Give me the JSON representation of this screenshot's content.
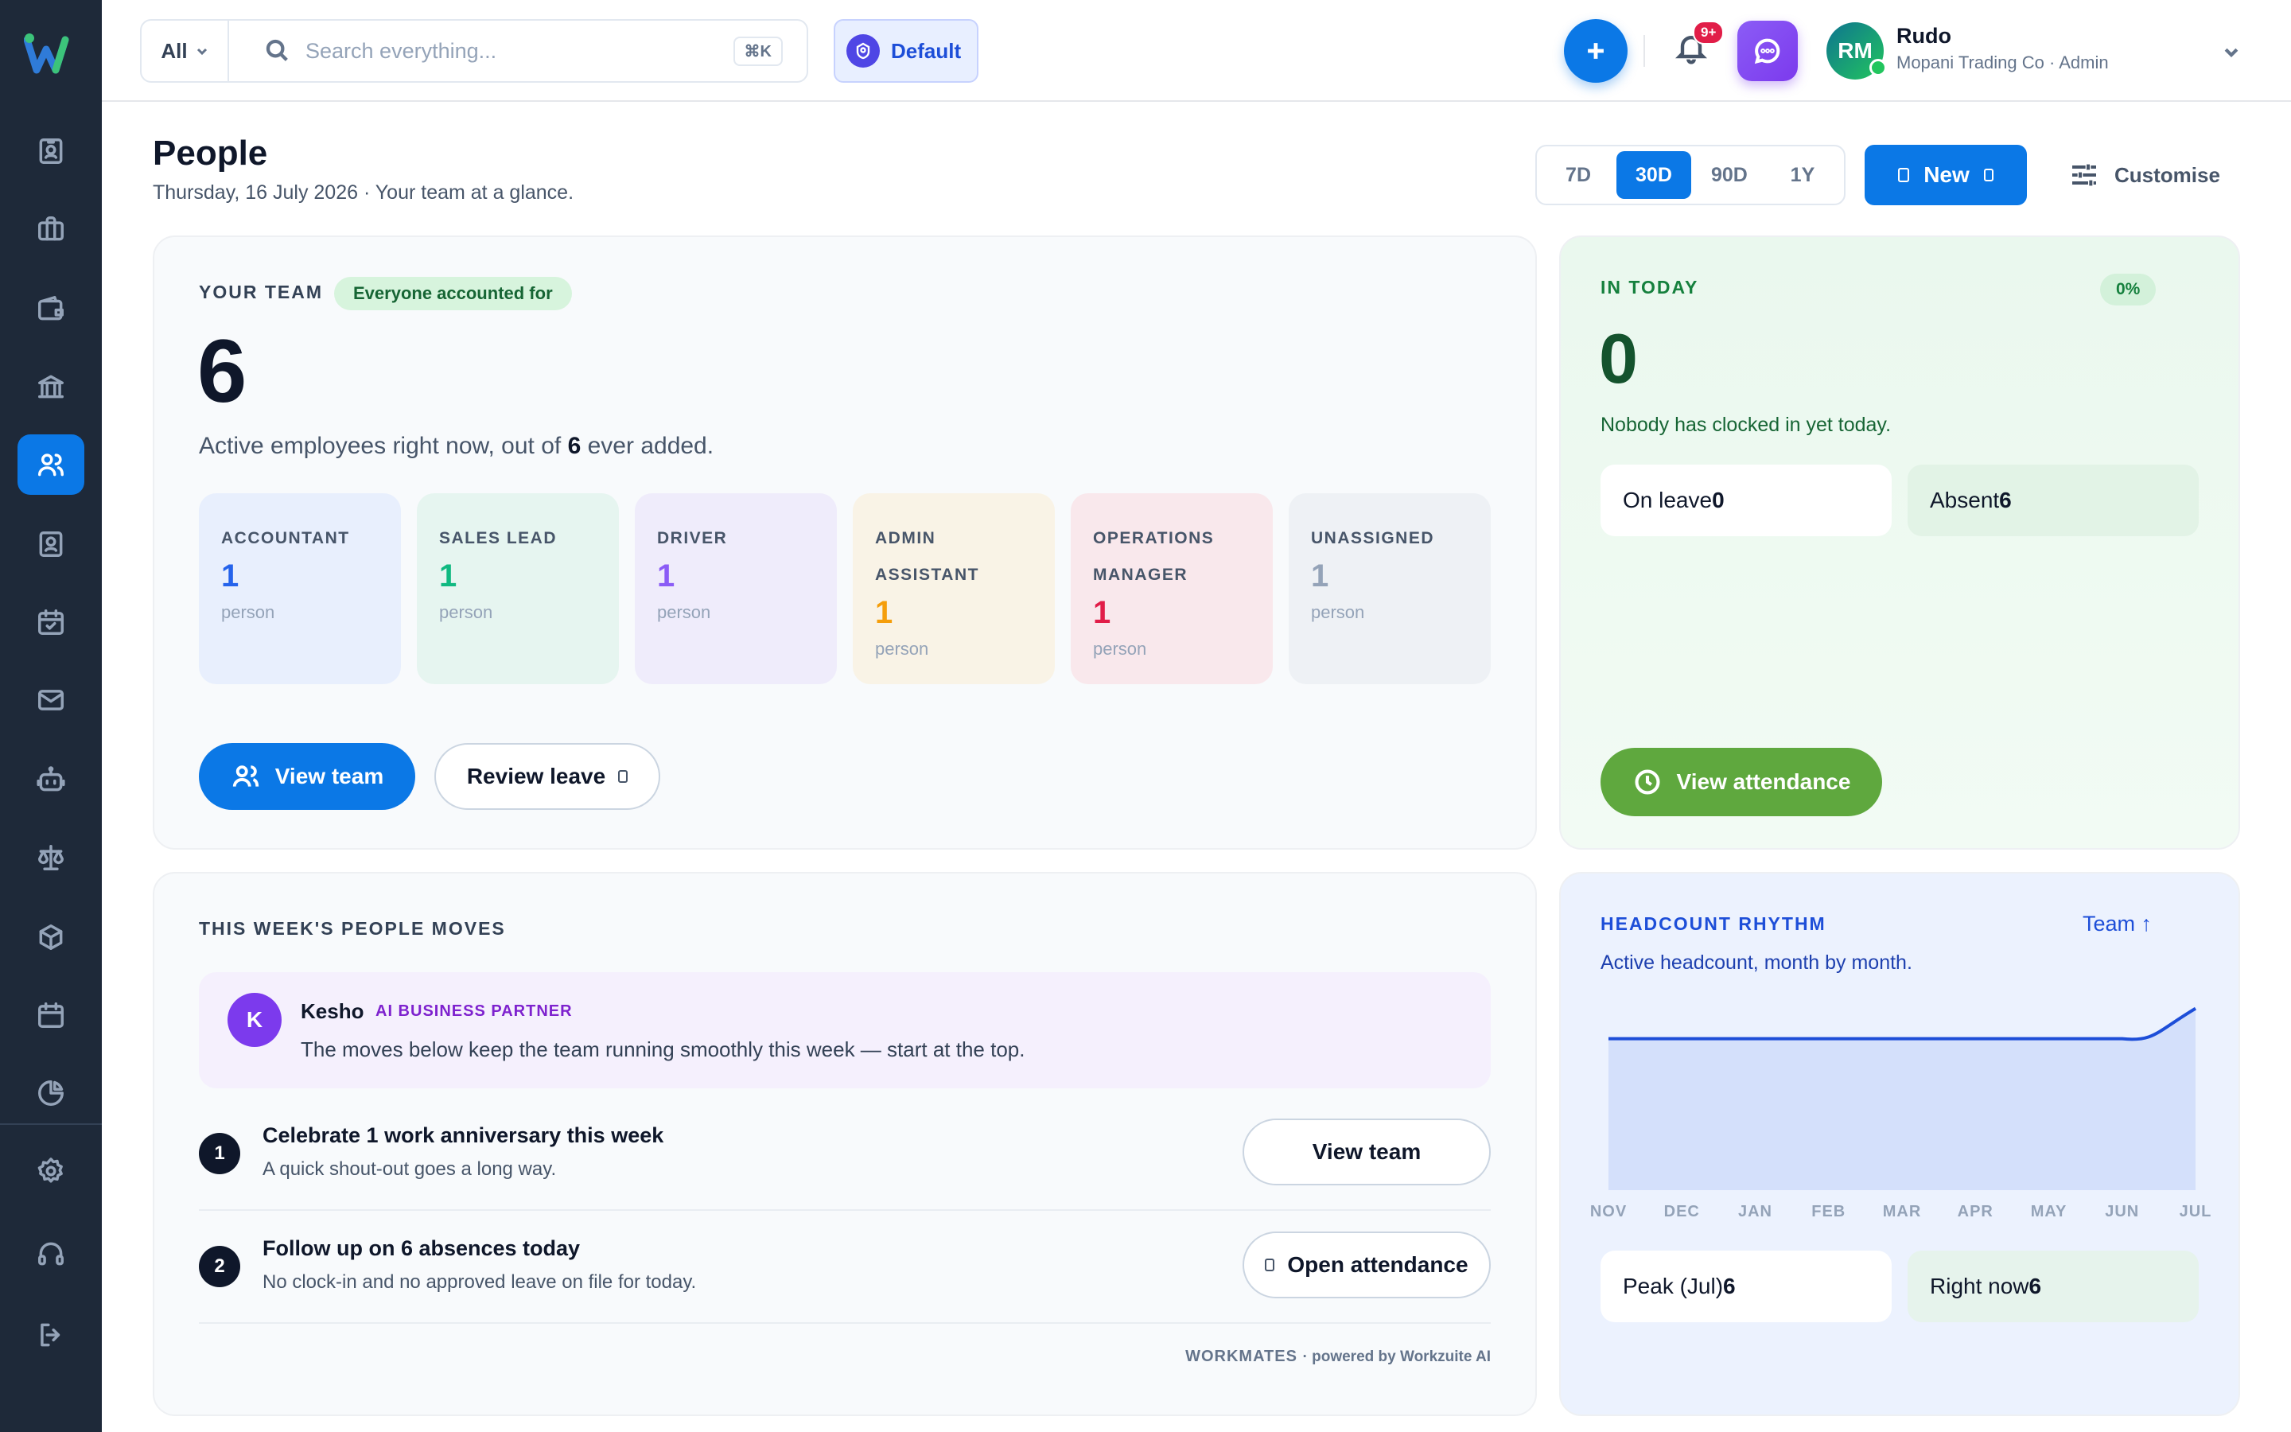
{
  "brand": {
    "logo_letter": "w"
  },
  "sidebar": {
    "items": [
      {
        "icon": "id-badge-icon"
      },
      {
        "icon": "briefcase-icon"
      },
      {
        "icon": "wallet-icon"
      },
      {
        "icon": "bank-icon"
      },
      {
        "icon": "people-icon",
        "active": true
      },
      {
        "icon": "contact-card-icon"
      },
      {
        "icon": "calendar-check-icon"
      },
      {
        "icon": "mail-icon"
      },
      {
        "icon": "robot-icon"
      },
      {
        "icon": "scales-icon"
      },
      {
        "icon": "box-icon"
      },
      {
        "icon": "calendar-icon"
      },
      {
        "icon": "pie-chart-icon"
      },
      {
        "icon": "gear-icon"
      },
      {
        "icon": "headset-icon"
      },
      {
        "icon": "logout-icon"
      }
    ]
  },
  "topbar": {
    "search_scope": "All",
    "search_placeholder": "Search everything...",
    "search_shortcut": "⌘K",
    "workspace_label": "Default",
    "notifications_badge": "9+",
    "user": {
      "initials": "RM",
      "name": "Rudo",
      "org": "Mopani Trading Co · Admin"
    }
  },
  "header": {
    "title": "People",
    "subtitle": "Thursday, 16 July 2026 · Your team at a glance.",
    "ranges": [
      "7D",
      "30D",
      "90D",
      "1Y"
    ],
    "active_range": "30D",
    "new_label": "New",
    "customise_label": "Customise"
  },
  "team": {
    "overline": "YOUR TEAM",
    "status_pill": "Everyone accounted for",
    "count": "6",
    "desc_prefix": "Active employees right now, out of",
    "desc_total": "6",
    "desc_suffix": "ever added.",
    "roles": [
      {
        "title": "ACCOUNTANT",
        "count": "1",
        "unit": "person",
        "bg": "#e8effd",
        "color": "#2563eb"
      },
      {
        "title": "SALES LEAD",
        "count": "1",
        "unit": "person",
        "bg": "#e6f5f0",
        "color": "#10b981"
      },
      {
        "title": "DRIVER",
        "count": "1",
        "unit": "person",
        "bg": "#efecfb",
        "color": "#8b5cf6"
      },
      {
        "title": "ADMIN ASSISTANT",
        "count": "1",
        "unit": "person",
        "bg": "#f9f3e6",
        "color": "#f59e0b"
      },
      {
        "title": "OPERATIONS MANAGER",
        "count": "1",
        "unit": "person",
        "bg": "#f9e8ec",
        "color": "#e11d48"
      },
      {
        "title": "UNASSIGNED",
        "count": "1",
        "unit": "person",
        "bg": "#eef1f5",
        "color": "#94a3b8"
      }
    ],
    "view_team_label": "View team",
    "review_leave_label": "Review leave"
  },
  "today": {
    "overline": "IN TODAY",
    "percent": "0%",
    "count": "0",
    "desc": "Nobody has clocked in yet today.",
    "on_leave_label": "On leave",
    "on_leave_value": "0",
    "absent_label": "Absent",
    "absent_value": "6",
    "view_attendance_label": "View attendance"
  },
  "moves": {
    "overline": "THIS WEEK'S PEOPLE MOVES",
    "assistant": {
      "initial": "K",
      "name": "Kesho",
      "tag": "AI BUSINESS PARTNER",
      "message": "The moves below keep the team running smoothly this week — start at the top."
    },
    "steps": [
      {
        "num": "1",
        "title": "Celebrate 1 work anniversary this week",
        "sub": "A quick shout-out goes a long way.",
        "action": "View team"
      },
      {
        "num": "2",
        "title": "Follow up on 6 absences today",
        "sub": "No clock-in and no approved leave on file for today.",
        "action": "Open attendance"
      }
    ],
    "footer_brand": "WORKMATES",
    "footer_powered": "· powered by Workzuite AI"
  },
  "rhythm": {
    "overline": "HEADCOUNT RHYTHM",
    "link_label": "Team ↑",
    "desc": "Active headcount, month by month.",
    "peak_label": "Peak (Jul)",
    "peak_value": "6",
    "now_label": "Right now",
    "now_value": "6"
  },
  "chart_data": {
    "type": "area",
    "categories": [
      "NOV",
      "DEC",
      "JAN",
      "FEB",
      "MAR",
      "APR",
      "MAY",
      "JUN",
      "JUL"
    ],
    "values": [
      5,
      5,
      5,
      5,
      5,
      5,
      5,
      5,
      6
    ],
    "ylim": [
      0,
      6.2
    ],
    "line_color": "#1d4ed8",
    "fill_color": "#d4e0fb"
  }
}
